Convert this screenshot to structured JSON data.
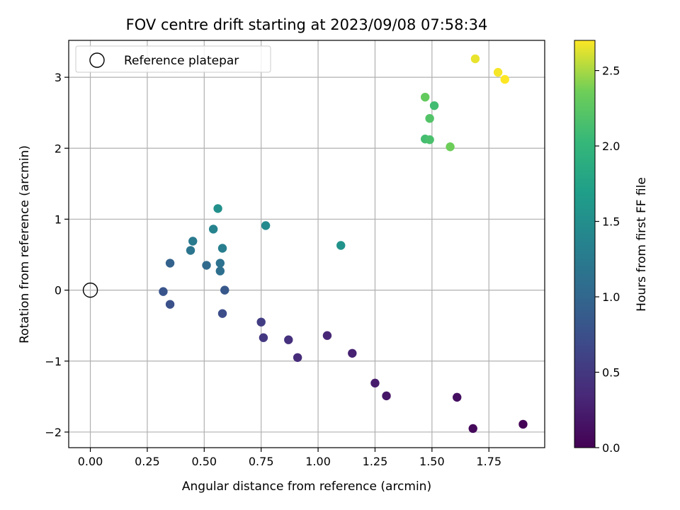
{
  "chart_data": {
    "type": "scatter",
    "title": "FOV centre drift starting at 2023/09/08 07:58:34",
    "xlabel": "Angular distance from reference (arcmin)",
    "ylabel": "Rotation from reference (arcmin)",
    "xlim": [
      -0.095,
      1.995
    ],
    "ylim": [
      -2.22,
      3.52
    ],
    "grid": true,
    "legend": {
      "placement": "upper-left",
      "entries": [
        "Reference platepar"
      ]
    },
    "x_ticks": [
      {
        "value": 0.0,
        "label": "0.00"
      },
      {
        "value": 0.25,
        "label": "0.25"
      },
      {
        "value": 0.5,
        "label": "0.50"
      },
      {
        "value": 0.75,
        "label": "0.75"
      },
      {
        "value": 1.0,
        "label": "1.00"
      },
      {
        "value": 1.25,
        "label": "1.25"
      },
      {
        "value": 1.5,
        "label": "1.50"
      },
      {
        "value": 1.75,
        "label": "1.75"
      }
    ],
    "y_ticks": [
      {
        "value": -2,
        "label": "−2"
      },
      {
        "value": -1,
        "label": "−1"
      },
      {
        "value": 0,
        "label": "0"
      },
      {
        "value": 1,
        "label": "1"
      },
      {
        "value": 2,
        "label": "2"
      },
      {
        "value": 3,
        "label": "3"
      }
    ],
    "colorbar": {
      "label": "Hours from first FF file",
      "colormap": "viridis",
      "range": [
        0.0,
        2.7
      ],
      "ticks": [
        {
          "value": 0.0,
          "label": "0.0"
        },
        {
          "value": 0.5,
          "label": "0.5"
        },
        {
          "value": 1.0,
          "label": "1.0"
        },
        {
          "value": 1.5,
          "label": "1.5"
        },
        {
          "value": 2.0,
          "label": "2.0"
        },
        {
          "value": 2.5,
          "label": "2.5"
        }
      ]
    },
    "reference_point": {
      "x": 0.0,
      "y": 0.0,
      "label": "Reference platepar"
    },
    "points": [
      {
        "x": 1.9,
        "y": -1.89,
        "hours": 0.02
      },
      {
        "x": 1.68,
        "y": -1.95,
        "hours": 0.07
      },
      {
        "x": 1.61,
        "y": -1.51,
        "hours": 0.12
      },
      {
        "x": 1.3,
        "y": -1.49,
        "hours": 0.18
      },
      {
        "x": 1.25,
        "y": -1.31,
        "hours": 0.23
      },
      {
        "x": 1.15,
        "y": -0.89,
        "hours": 0.28
      },
      {
        "x": 1.04,
        "y": -0.64,
        "hours": 0.33
      },
      {
        "x": 0.91,
        "y": -0.95,
        "hours": 0.38
      },
      {
        "x": 0.87,
        "y": -0.7,
        "hours": 0.43
      },
      {
        "x": 0.76,
        "y": -0.67,
        "hours": 0.5
      },
      {
        "x": 0.75,
        "y": -0.45,
        "hours": 0.55
      },
      {
        "x": 0.58,
        "y": -0.33,
        "hours": 0.72
      },
      {
        "x": 0.35,
        "y": -0.2,
        "hours": 0.76
      },
      {
        "x": 0.32,
        "y": -0.02,
        "hours": 0.8
      },
      {
        "x": 0.59,
        "y": 0.0,
        "hours": 0.84
      },
      {
        "x": 0.35,
        "y": 0.38,
        "hours": 0.95
      },
      {
        "x": 0.51,
        "y": 0.35,
        "hours": 1.05
      },
      {
        "x": 0.57,
        "y": 0.27,
        "hours": 1.1
      },
      {
        "x": 0.57,
        "y": 0.38,
        "hours": 1.14
      },
      {
        "x": 0.44,
        "y": 0.56,
        "hours": 1.18
      },
      {
        "x": 0.45,
        "y": 0.69,
        "hours": 1.24
      },
      {
        "x": 0.58,
        "y": 0.59,
        "hours": 1.3
      },
      {
        "x": 0.54,
        "y": 0.86,
        "hours": 1.36
      },
      {
        "x": 0.77,
        "y": 0.91,
        "hours": 1.45
      },
      {
        "x": 0.56,
        "y": 1.15,
        "hours": 1.52
      },
      {
        "x": 1.1,
        "y": 0.63,
        "hours": 1.55
      },
      {
        "x": 1.47,
        "y": 2.13,
        "hours": 2.12
      },
      {
        "x": 1.49,
        "y": 2.12,
        "hours": 2.15
      },
      {
        "x": 1.49,
        "y": 2.42,
        "hours": 2.2
      },
      {
        "x": 1.51,
        "y": 2.6,
        "hours": 2.1
      },
      {
        "x": 1.47,
        "y": 2.72,
        "hours": 2.3
      },
      {
        "x": 1.58,
        "y": 2.02,
        "hours": 2.35
      },
      {
        "x": 1.69,
        "y": 3.26,
        "hours": 2.65
      },
      {
        "x": 1.79,
        "y": 3.07,
        "hours": 2.68
      },
      {
        "x": 1.82,
        "y": 2.97,
        "hours": 2.7
      }
    ]
  }
}
